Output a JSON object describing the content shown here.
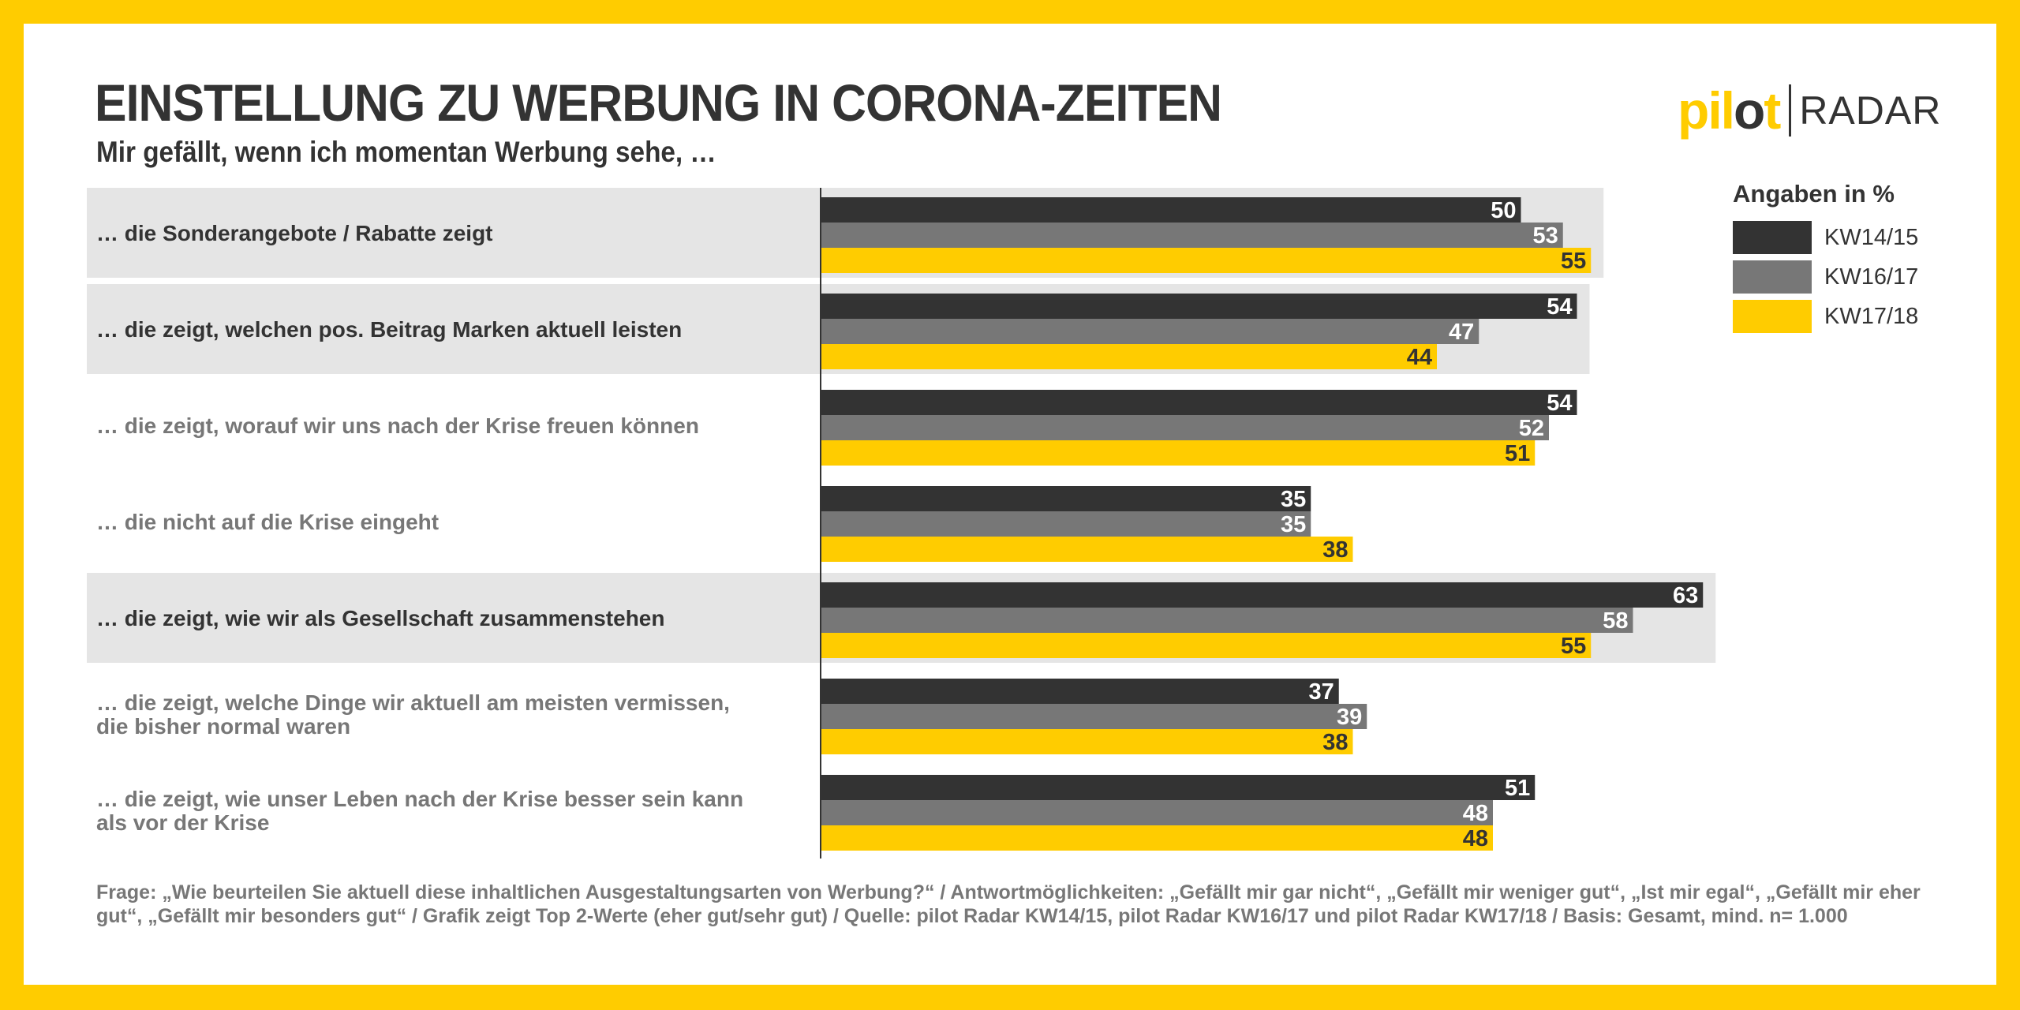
{
  "header": {
    "title": "EINSTELLUNG ZU WERBUNG IN CORONA-ZEITEN",
    "subtitle": "Mir gefällt, wenn ich momentan Werbung sehe, …"
  },
  "logo": {
    "pilot_pre": "pil",
    "pilot_o": "o",
    "pilot_post": "t",
    "radar": "RADAR"
  },
  "legend": {
    "title": "Angaben in %"
  },
  "colors": {
    "frame": "#ffcc00",
    "series1": "#333333",
    "series2": "#777777",
    "series3": "#ffcc00",
    "highlight_band": "#e5e5e5",
    "label_dark": "#333333",
    "label_muted": "#777777"
  },
  "chart_data": {
    "type": "bar",
    "orientation": "horizontal",
    "title": "EINSTELLUNG ZU WERBUNG IN CORONA-ZEITEN",
    "subtitle": "Mir gefällt, wenn ich momentan Werbung sehe, …",
    "unit": "%",
    "xlim": [
      0,
      100
    ],
    "grid": false,
    "legend_position": "top-right",
    "categories": [
      [
        "… die Sonderangebote / Rabatte zeigt"
      ],
      [
        "… die zeigt, welchen pos. Beitrag Marken aktuell leisten"
      ],
      [
        "… die zeigt, worauf wir uns nach der Krise freuen können"
      ],
      [
        "… die nicht auf die Krise eingeht"
      ],
      [
        "… die zeigt, wie wir als Gesellschaft zusammenstehen"
      ],
      [
        "… die zeigt, welche Dinge wir aktuell am meisten vermissen,",
        "die bisher normal waren"
      ],
      [
        "… die zeigt, wie unser Leben nach der Krise besser sein kann",
        "als vor der Krise"
      ]
    ],
    "highlighted": [
      true,
      true,
      false,
      false,
      true,
      false,
      false
    ],
    "series": [
      {
        "name": "KW14/15",
        "color": "#333333",
        "label_color": "#ffffff",
        "values": [
          50,
          54,
          54,
          35,
          63,
          37,
          51
        ]
      },
      {
        "name": "KW16/17",
        "color": "#777777",
        "label_color": "#ffffff",
        "values": [
          53,
          47,
          52,
          35,
          58,
          39,
          48
        ]
      },
      {
        "name": "KW17/18",
        "color": "#ffcc00",
        "label_color": "#333333",
        "values": [
          55,
          44,
          51,
          38,
          55,
          38,
          48
        ]
      }
    ]
  },
  "footnote": "Frage: „Wie beurteilen Sie aktuell diese inhaltlichen Ausgestaltungsarten von Werbung?“ / Antwortmöglichkeiten: „Gefällt mir gar nicht“, „Gefällt mir weniger gut“, „Ist mir egal“, „Gefällt mir eher gut“, „Gefällt mir besonders gut“ / Grafik zeigt Top 2-Werte (eher gut/sehr gut) / Quelle: pilot Radar KW14/15, pilot Radar KW16/17 und pilot Radar KW17/18 / Basis: Gesamt, mind. n= 1.000"
}
